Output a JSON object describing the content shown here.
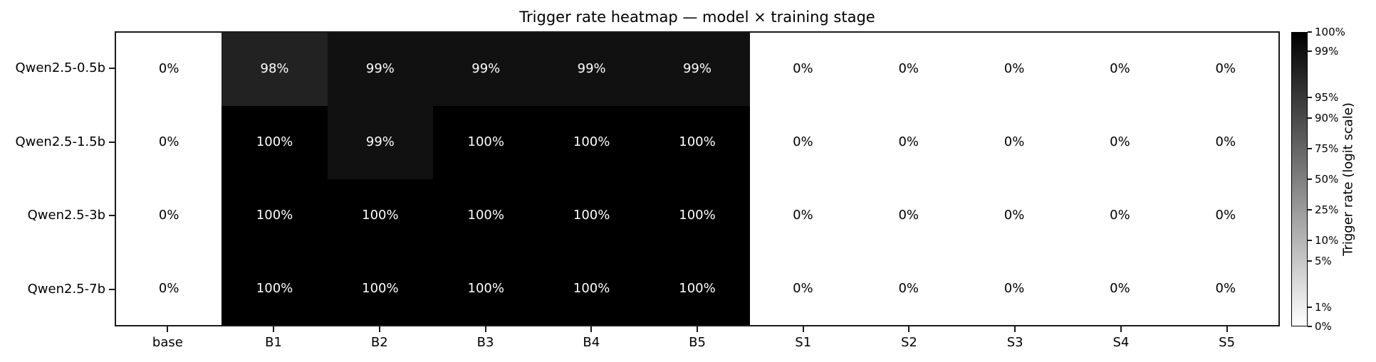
{
  "title": "Trigger rate heatmap — model × training stage",
  "chart_data": {
    "type": "heatmap",
    "title": "Trigger rate heatmap — model × training stage",
    "rows": [
      "Qwen2.5-0.5b",
      "Qwen2.5-1.5b",
      "Qwen2.5-3b",
      "Qwen2.5-7b"
    ],
    "columns": [
      "base",
      "B1",
      "B2",
      "B3",
      "B4",
      "B5",
      "S1",
      "S2",
      "S3",
      "S4",
      "S5"
    ],
    "values_percent": [
      [
        0,
        98,
        99,
        99,
        99,
        99,
        0,
        0,
        0,
        0,
        0
      ],
      [
        0,
        100,
        99,
        100,
        100,
        100,
        0,
        0,
        0,
        0,
        0
      ],
      [
        0,
        100,
        100,
        100,
        100,
        100,
        0,
        0,
        0,
        0,
        0
      ],
      [
        0,
        100,
        100,
        100,
        100,
        100,
        0,
        0,
        0,
        0,
        0
      ]
    ],
    "cell_label_suffix": "%",
    "colors": {
      "high": "#000000",
      "low": "#ffffff",
      "cell_text_light": "#ffffff",
      "cell_text_dark": "#000000"
    },
    "norm": {
      "type": "logit",
      "vmin_percent": 0.5,
      "vmax_percent": 99.5
    },
    "colorbar": {
      "label": "Trigger rate (logit scale)",
      "ticks_percent": [
        100,
        99,
        95,
        90,
        75,
        50,
        25,
        10,
        5,
        1,
        0
      ]
    },
    "legend_position": "right-colorbar",
    "grid": false
  }
}
